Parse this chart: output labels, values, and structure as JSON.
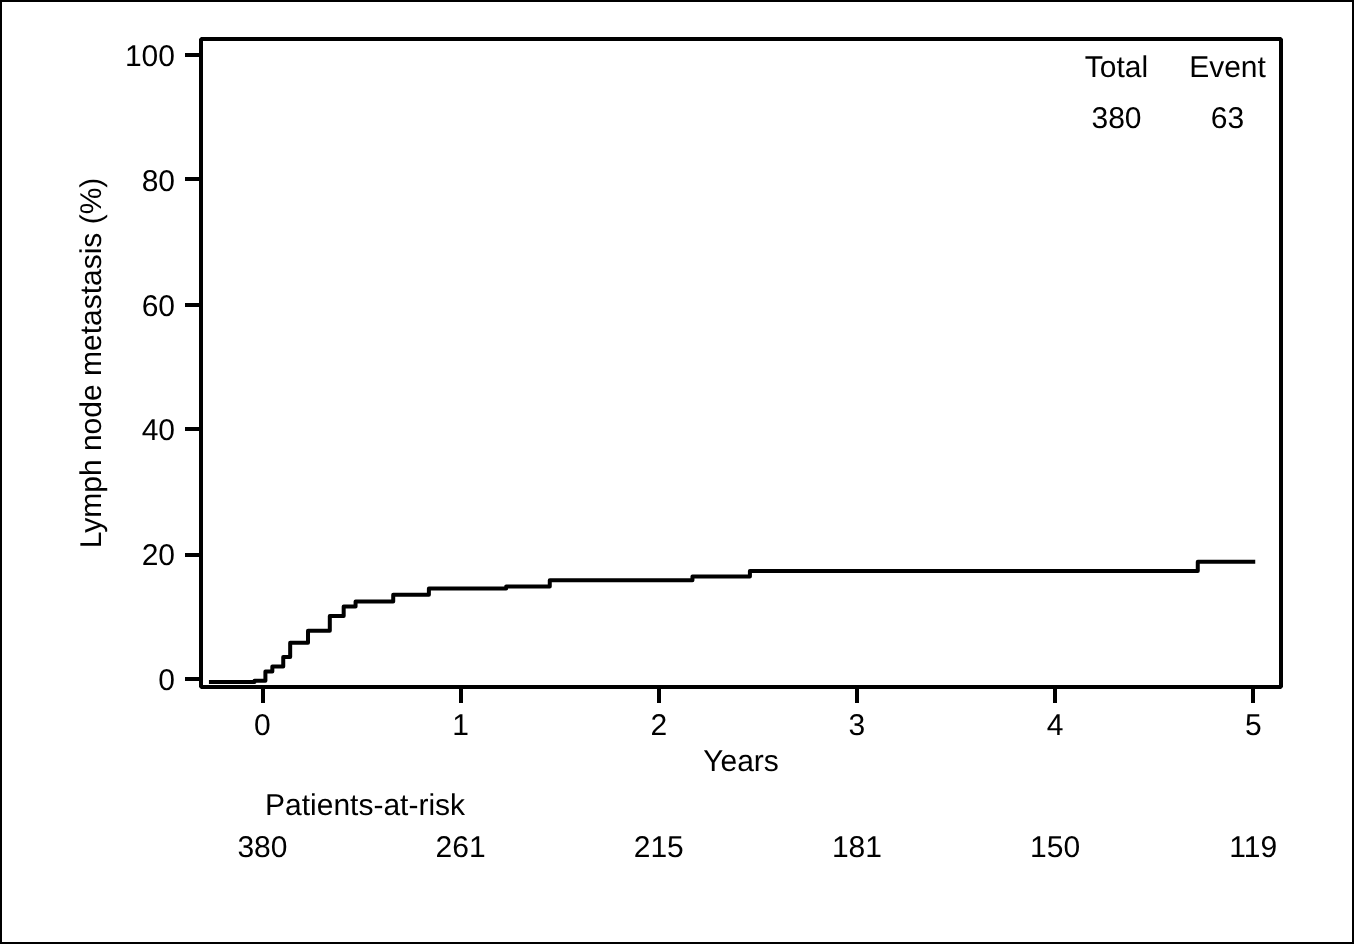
{
  "chart_data": {
    "type": "step",
    "xlabel": "Years",
    "ylabel": "Lymph node metastasis (%)",
    "x": [
      -0.27,
      -0.04,
      0.015,
      0.05,
      0.105,
      0.14,
      0.23,
      0.34,
      0.41,
      0.47,
      0.66,
      0.84,
      1.23,
      1.45,
      2.17,
      2.46,
      4.72,
      5.01
    ],
    "values": [
      -0.5,
      -0.3,
      1.2,
      2.0,
      3.5,
      5.8,
      7.7,
      10.1,
      11.6,
      12.4,
      13.5,
      14.5,
      14.8,
      15.8,
      16.4,
      17.3,
      18.8,
      18.8
    ],
    "color": "#000000",
    "xlim": [
      -0.31,
      5.14
    ],
    "ylim": [
      -1.3,
      102.6
    ],
    "xticks": [
      0,
      1,
      2,
      3,
      4,
      5
    ],
    "yticks": [
      0,
      20,
      40,
      60,
      80,
      100
    ],
    "grid": false,
    "annotations": [
      "Total",
      "Event",
      "380",
      "63",
      "Patients-at-risk",
      "380",
      "261",
      "215",
      "181",
      "150",
      "119"
    ]
  }
}
